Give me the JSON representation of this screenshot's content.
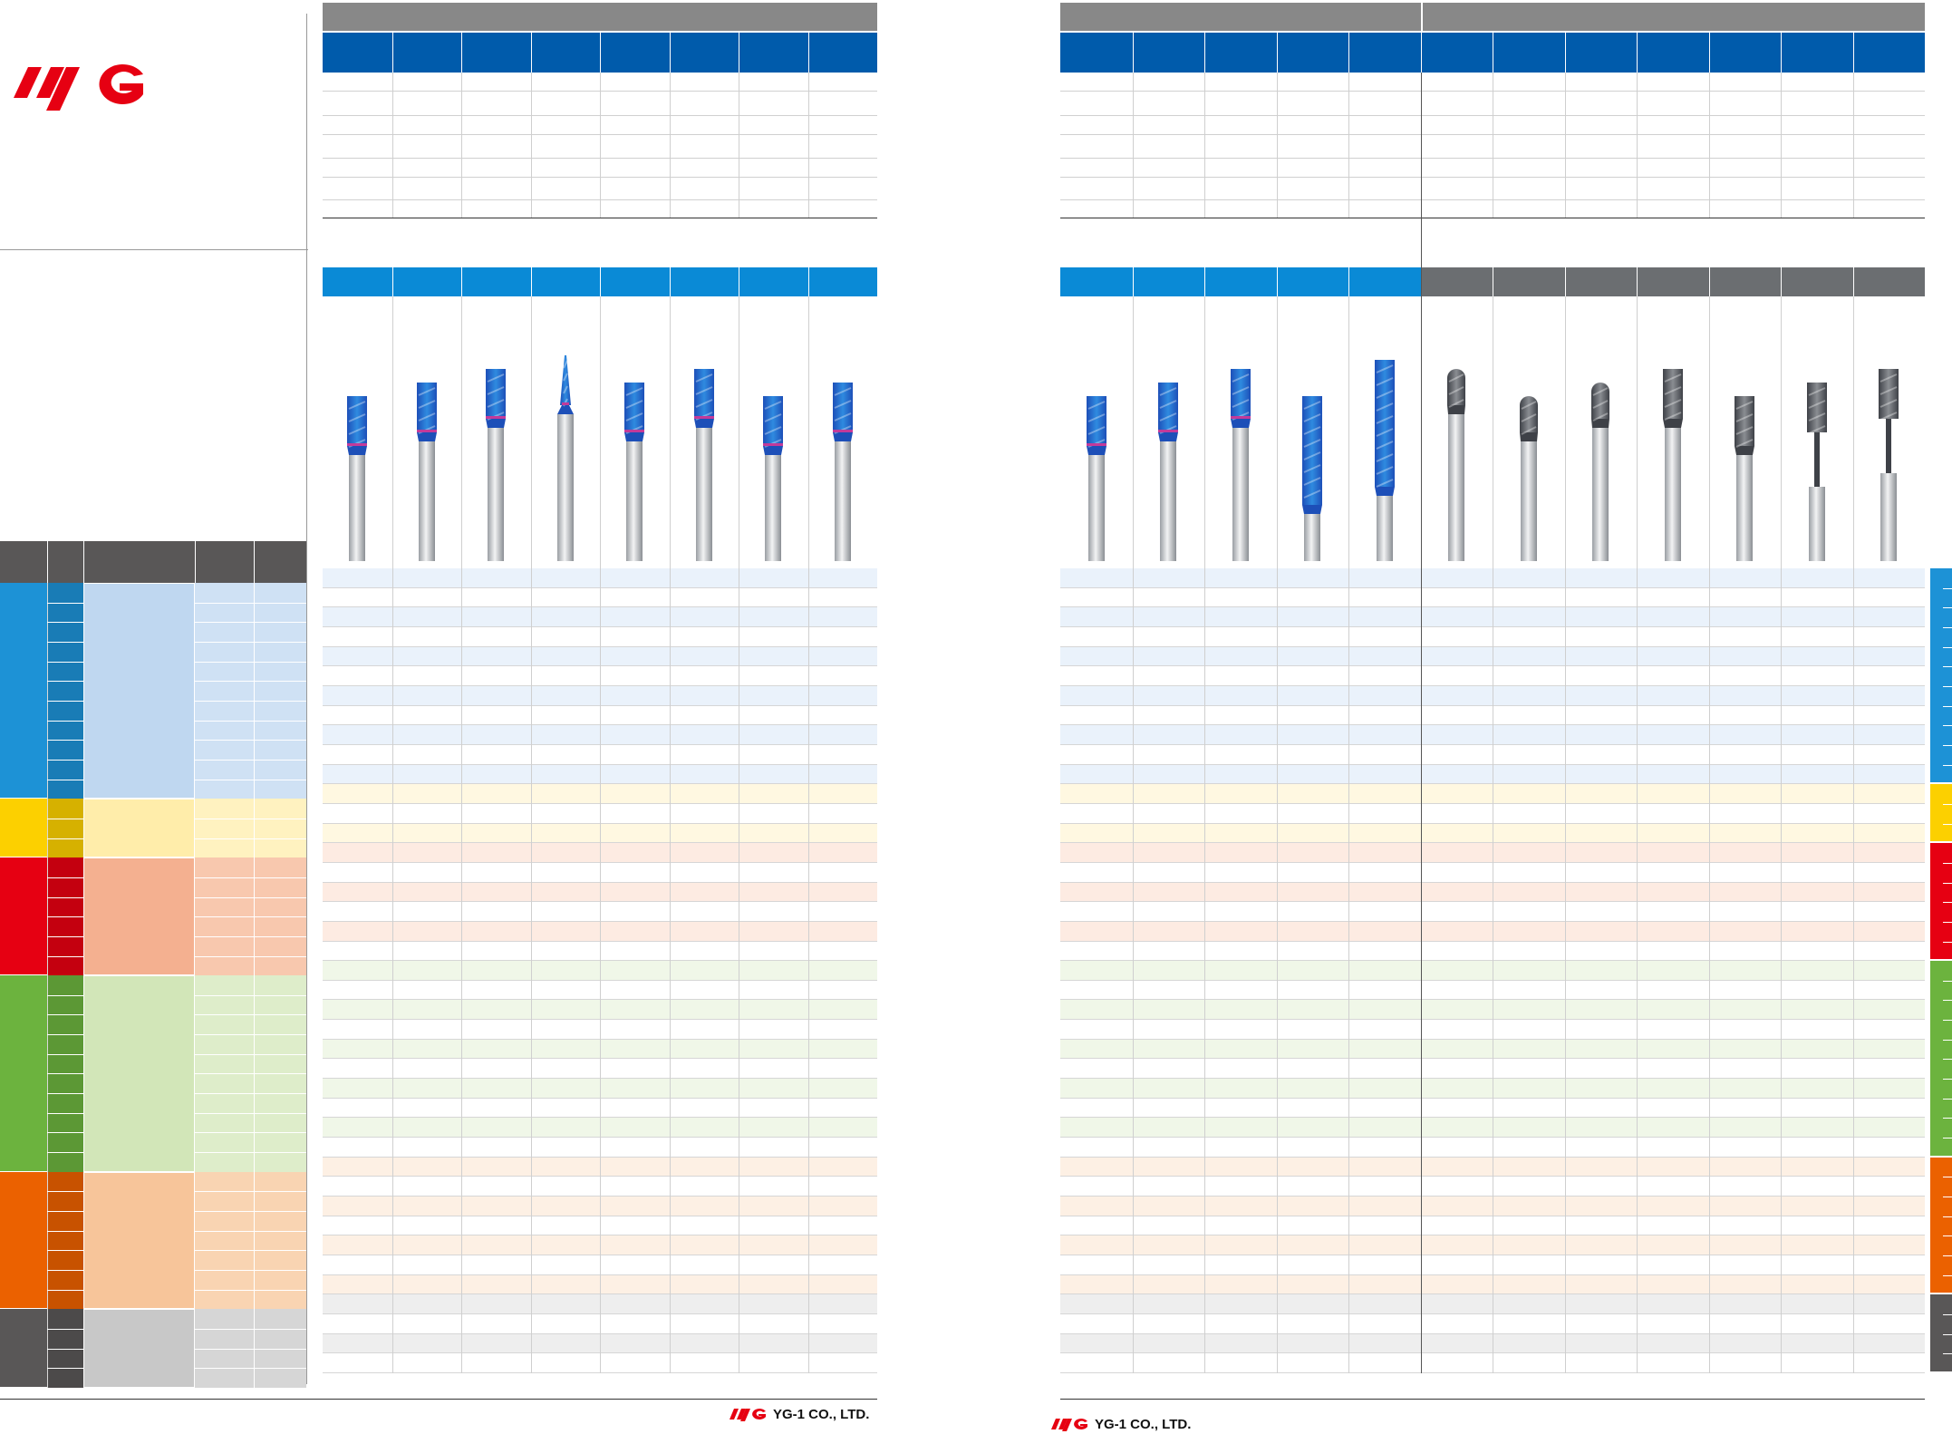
{
  "brand": {
    "logo_text": "YG",
    "company": "YG-1 CO., LTD.",
    "accent": "#e60012"
  },
  "colors": {
    "header_gray": "#888888",
    "header_blue": "#005bab",
    "series_blue": "#0a8ad6",
    "series_gray": "#6b6e71",
    "iso_p": "#1d92d6",
    "iso_m": "#fcd000",
    "iso_k": "#e60012",
    "iso_n": "#6cb33e",
    "iso_s": "#eb6100",
    "iso_h": "#595757"
  },
  "material_groups": [
    {
      "key": "P",
      "color": "#1d92d6",
      "rows": 11,
      "tint": "#eaf2fb"
    },
    {
      "key": "M",
      "color": "#fcd000",
      "rows": 3,
      "tint": "#fff8e1"
    },
    {
      "key": "K",
      "color": "#e60012",
      "rows": 6,
      "tint": "#fdebe2"
    },
    {
      "key": "N",
      "color": "#6cb33e",
      "rows": 10,
      "tint": "#f0f7e8"
    },
    {
      "key": "S",
      "color": "#eb6100",
      "rows": 7,
      "tint": "#fdf0e4"
    },
    {
      "key": "H",
      "color": "#595757",
      "rows": 4,
      "tint": "#eeeeee"
    }
  ],
  "left_page_tools": [
    {
      "icon": "square-end-mill-icon",
      "coating": "blue"
    },
    {
      "icon": "square-end-mill-icon",
      "coating": "blue"
    },
    {
      "icon": "stub-end-mill-icon",
      "coating": "blue"
    },
    {
      "icon": "tapered-end-mill-icon",
      "coating": "blue"
    },
    {
      "icon": "square-end-mill-icon",
      "coating": "blue"
    },
    {
      "icon": "square-end-mill-icon",
      "coating": "blue"
    },
    {
      "icon": "square-end-mill-icon",
      "coating": "blue"
    },
    {
      "icon": "multi-flute-end-mill-icon",
      "coating": "blue"
    }
  ],
  "right_page_tools": [
    {
      "icon": "stub-end-mill-icon",
      "coating": "blue"
    },
    {
      "icon": "square-end-mill-icon",
      "coating": "blue"
    },
    {
      "icon": "square-end-mill-icon",
      "coating": "blue"
    },
    {
      "icon": "roughing-end-mill-icon",
      "coating": "blue"
    },
    {
      "icon": "long-roughing-end-mill-icon",
      "coating": "blue"
    },
    {
      "icon": "ball-end-mill-icon",
      "coating": "gray"
    },
    {
      "icon": "ball-end-mill-icon",
      "coating": "gray"
    },
    {
      "icon": "ball-end-mill-icon",
      "coating": "gray"
    },
    {
      "icon": "square-end-mill-icon",
      "coating": "gray"
    },
    {
      "icon": "square-end-mill-icon",
      "coating": "gray"
    },
    {
      "icon": "long-neck-end-mill-icon",
      "coating": "gray"
    },
    {
      "icon": "long-neck-end-mill-icon",
      "coating": "gray"
    }
  ]
}
